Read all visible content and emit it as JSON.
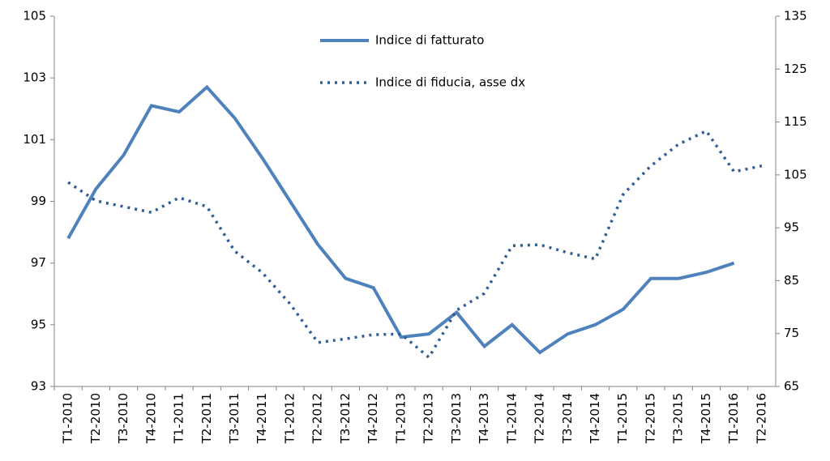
{
  "chart_data": {
    "type": "line",
    "categories": [
      "T1-2010",
      "T2-2010",
      "T3-2010",
      "T4-2010",
      "T1-2011",
      "T2-2011",
      "T3-2011",
      "T4-2011",
      "T1-2012",
      "T2-2012",
      "T3-2012",
      "T4-2012",
      "T1-2013",
      "T2-2013",
      "T3-2013",
      "T4-2013",
      "T1-2014",
      "T2-2014",
      "T3-2014",
      "T4-2014",
      "T1-2015",
      "T2-2015",
      "T3-2015",
      "T4-2015",
      "T1-2016",
      "T2-2016"
    ],
    "series": [
      {
        "name": "Indice di fatturato",
        "color": "#4f81bd",
        "style": "solid",
        "values": [
          97.8,
          99.4,
          100.5,
          102.1,
          101.9,
          102.7,
          101.7,
          100.4,
          99.0,
          97.6,
          96.5,
          96.2,
          94.6,
          94.7,
          95.4,
          94.3,
          95.0,
          94.1,
          94.7,
          95.0,
          95.5,
          96.5,
          96.5,
          96.7,
          97.0,
          null
        ]
      },
      {
        "name": "Indice di fiducia, asse dx",
        "color": "#2f5d95",
        "style": "dotted",
        "axis": "y2",
        "values": [
          103.6,
          100.1,
          99.0,
          97.9,
          100.7,
          99.0,
          90.6,
          86.5,
          80.6,
          73.3,
          74.0,
          74.8,
          74.9,
          70.5,
          79.4,
          82.6,
          91.6,
          91.8,
          90.3,
          89.1,
          101.3,
          106.7,
          110.8,
          113.3,
          105.6,
          106.7
        ]
      }
    ],
    "ylim": [
      93,
      105
    ],
    "yticks": [
      93,
      95,
      97,
      99,
      101,
      103,
      105
    ],
    "y2lim": [
      65,
      135
    ],
    "y2ticks": [
      65,
      75,
      85,
      95,
      105,
      115,
      125,
      135
    ]
  }
}
